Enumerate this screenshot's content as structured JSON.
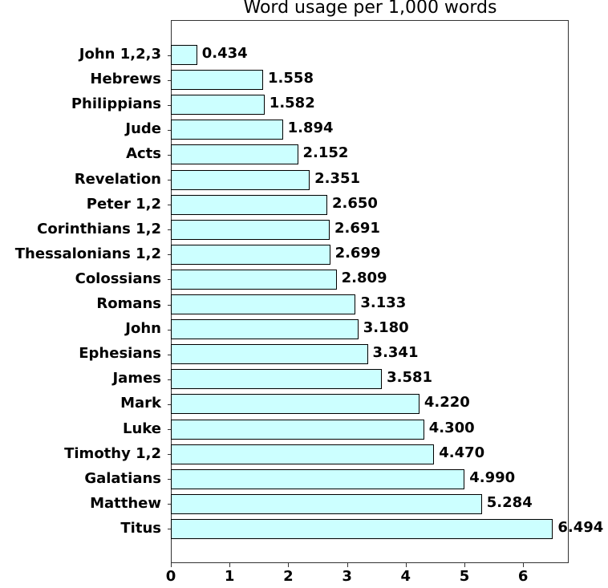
{
  "chart_data": {
    "type": "bar",
    "orientation": "horizontal",
    "title": "Word usage per 1,000 words",
    "xlabel": "",
    "ylabel": "",
    "xlim": [
      0,
      6.8
    ],
    "xticks": [
      0,
      1,
      2,
      3,
      4,
      5,
      6
    ],
    "grid": false,
    "legend": null,
    "bar_color": "#ccffff",
    "bar_edge_color": "#000000",
    "categories": [
      "John 1,2,3",
      "Hebrews",
      "Philippians",
      "Jude",
      "Acts",
      "Revelation",
      "Peter 1,2",
      "Corinthians 1,2",
      "Thessalonians 1,2",
      "Colossians",
      "Romans",
      "John",
      "Ephesians",
      "James",
      "Mark",
      "Luke",
      "Timothy 1,2",
      "Galatians",
      "Matthew",
      "Titus"
    ],
    "values": [
      0.434,
      1.558,
      1.582,
      1.894,
      2.152,
      2.351,
      2.65,
      2.691,
      2.699,
      2.809,
      3.133,
      3.18,
      3.341,
      3.581,
      4.22,
      4.3,
      4.47,
      4.99,
      5.284,
      6.494
    ],
    "value_labels": [
      "0.434",
      "1.558",
      "1.582",
      "1.894",
      "2.152",
      "2.351",
      "2.650",
      "2.691",
      "2.699",
      "2.809",
      "3.133",
      "3.180",
      "3.341",
      "3.581",
      "4.220",
      "4.300",
      "4.470",
      "4.990",
      "5.284",
      "6.494"
    ]
  }
}
